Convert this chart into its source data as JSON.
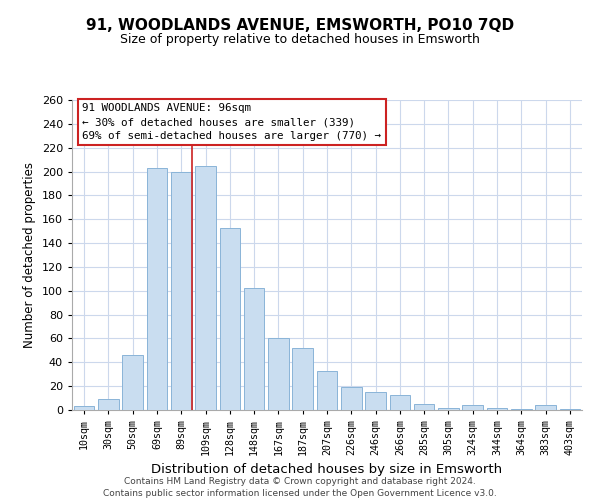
{
  "title": "91, WOODLANDS AVENUE, EMSWORTH, PO10 7QD",
  "subtitle": "Size of property relative to detached houses in Emsworth",
  "xlabel": "Distribution of detached houses by size in Emsworth",
  "ylabel": "Number of detached properties",
  "categories": [
    "10sqm",
    "30sqm",
    "50sqm",
    "69sqm",
    "89sqm",
    "109sqm",
    "128sqm",
    "148sqm",
    "167sqm",
    "187sqm",
    "207sqm",
    "226sqm",
    "246sqm",
    "266sqm",
    "285sqm",
    "305sqm",
    "324sqm",
    "344sqm",
    "364sqm",
    "383sqm",
    "403sqm"
  ],
  "values": [
    3,
    9,
    46,
    203,
    200,
    205,
    153,
    102,
    60,
    52,
    33,
    19,
    15,
    13,
    5,
    2,
    4,
    2,
    1,
    4,
    1
  ],
  "bar_color": "#c9ddf0",
  "bar_edge_color": "#8ab4d8",
  "red_line_index": 4,
  "red_line_color": "#cc2222",
  "ylim": [
    0,
    260
  ],
  "yticks": [
    0,
    20,
    40,
    60,
    80,
    100,
    120,
    140,
    160,
    180,
    200,
    220,
    240,
    260
  ],
  "annotation_title": "91 WOODLANDS AVENUE: 96sqm",
  "annotation_line1": "← 30% of detached houses are smaller (339)",
  "annotation_line2": "69% of semi-detached houses are larger (770) →",
  "footer1": "Contains HM Land Registry data © Crown copyright and database right 2024.",
  "footer2": "Contains public sector information licensed under the Open Government Licence v3.0.",
  "background_color": "#ffffff",
  "grid_color": "#ccd8ec",
  "title_fontsize": 11,
  "subtitle_fontsize": 9,
  "ylabel_fontsize": 8.5,
  "xlabel_fontsize": 9.5
}
